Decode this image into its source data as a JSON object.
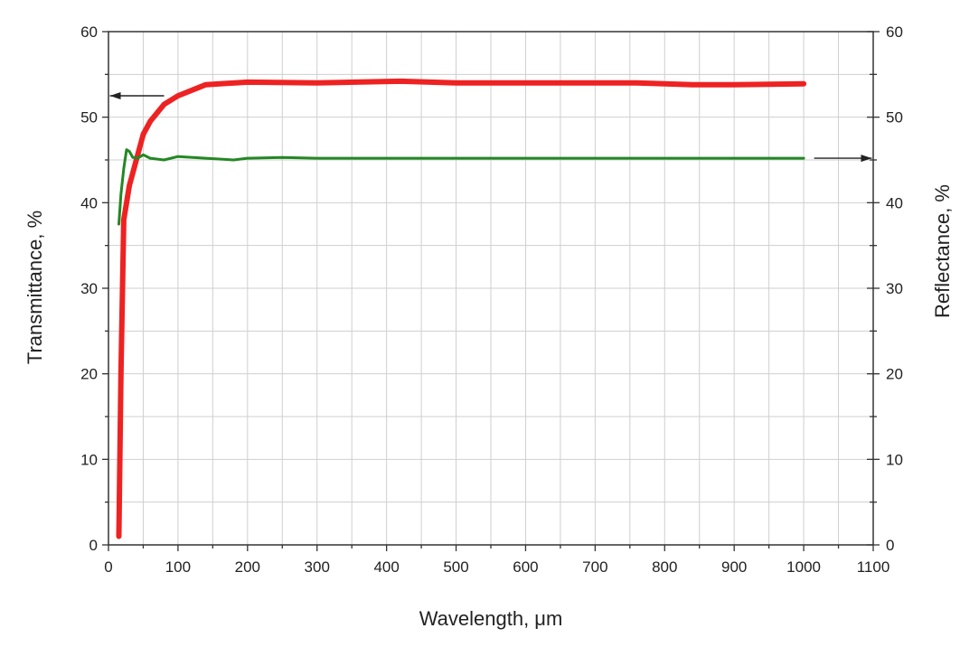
{
  "chart_data": {
    "type": "line",
    "xlabel": "Wavelength, μm",
    "ylabel_left": "Transmittance, %",
    "ylabel_right": "Reflectance, %",
    "xlim": [
      0,
      1100
    ],
    "ylim_left": [
      0,
      60
    ],
    "ylim_right": [
      0,
      60
    ],
    "x_ticks": [
      0,
      100,
      200,
      300,
      400,
      500,
      600,
      700,
      800,
      900,
      1000,
      1100
    ],
    "y_ticks": [
      0,
      10,
      20,
      30,
      40,
      50,
      60
    ],
    "grid": true,
    "series": [
      {
        "key": "transmittance",
        "axis": "left",
        "color": "#ee2222",
        "points": [
          [
            15,
            1
          ],
          [
            18,
            20
          ],
          [
            22,
            38
          ],
          [
            30,
            42
          ],
          [
            40,
            45
          ],
          [
            50,
            48
          ],
          [
            60,
            49.5
          ],
          [
            80,
            51.5
          ],
          [
            100,
            52.5
          ],
          [
            140,
            53.8
          ],
          [
            200,
            54.1
          ],
          [
            300,
            54.0
          ],
          [
            420,
            54.2
          ],
          [
            500,
            54.0
          ],
          [
            600,
            54.0
          ],
          [
            700,
            54.0
          ],
          [
            760,
            54.0
          ],
          [
            840,
            53.8
          ],
          [
            900,
            53.8
          ],
          [
            1000,
            53.9
          ]
        ]
      },
      {
        "key": "reflectance",
        "axis": "right",
        "color": "#228822",
        "points": [
          [
            15,
            37.5
          ],
          [
            18,
            41
          ],
          [
            22,
            44
          ],
          [
            26,
            46.2
          ],
          [
            30,
            46.0
          ],
          [
            35,
            45.3
          ],
          [
            42,
            45.2
          ],
          [
            50,
            45.6
          ],
          [
            60,
            45.2
          ],
          [
            80,
            45.0
          ],
          [
            100,
            45.4
          ],
          [
            140,
            45.2
          ],
          [
            180,
            45.0
          ],
          [
            200,
            45.2
          ],
          [
            250,
            45.3
          ],
          [
            300,
            45.2
          ],
          [
            400,
            45.2
          ],
          [
            500,
            45.2
          ],
          [
            700,
            45.2
          ],
          [
            1000,
            45.2
          ]
        ]
      }
    ],
    "annotations": [
      {
        "type": "arrow",
        "series": "transmittance",
        "direction": "left",
        "from_x": 80,
        "to_x": 2,
        "y": 52.5
      },
      {
        "type": "arrow",
        "series": "reflectance",
        "direction": "right",
        "from_x": 1015,
        "to_x": 1098,
        "y": 45.2
      }
    ]
  }
}
